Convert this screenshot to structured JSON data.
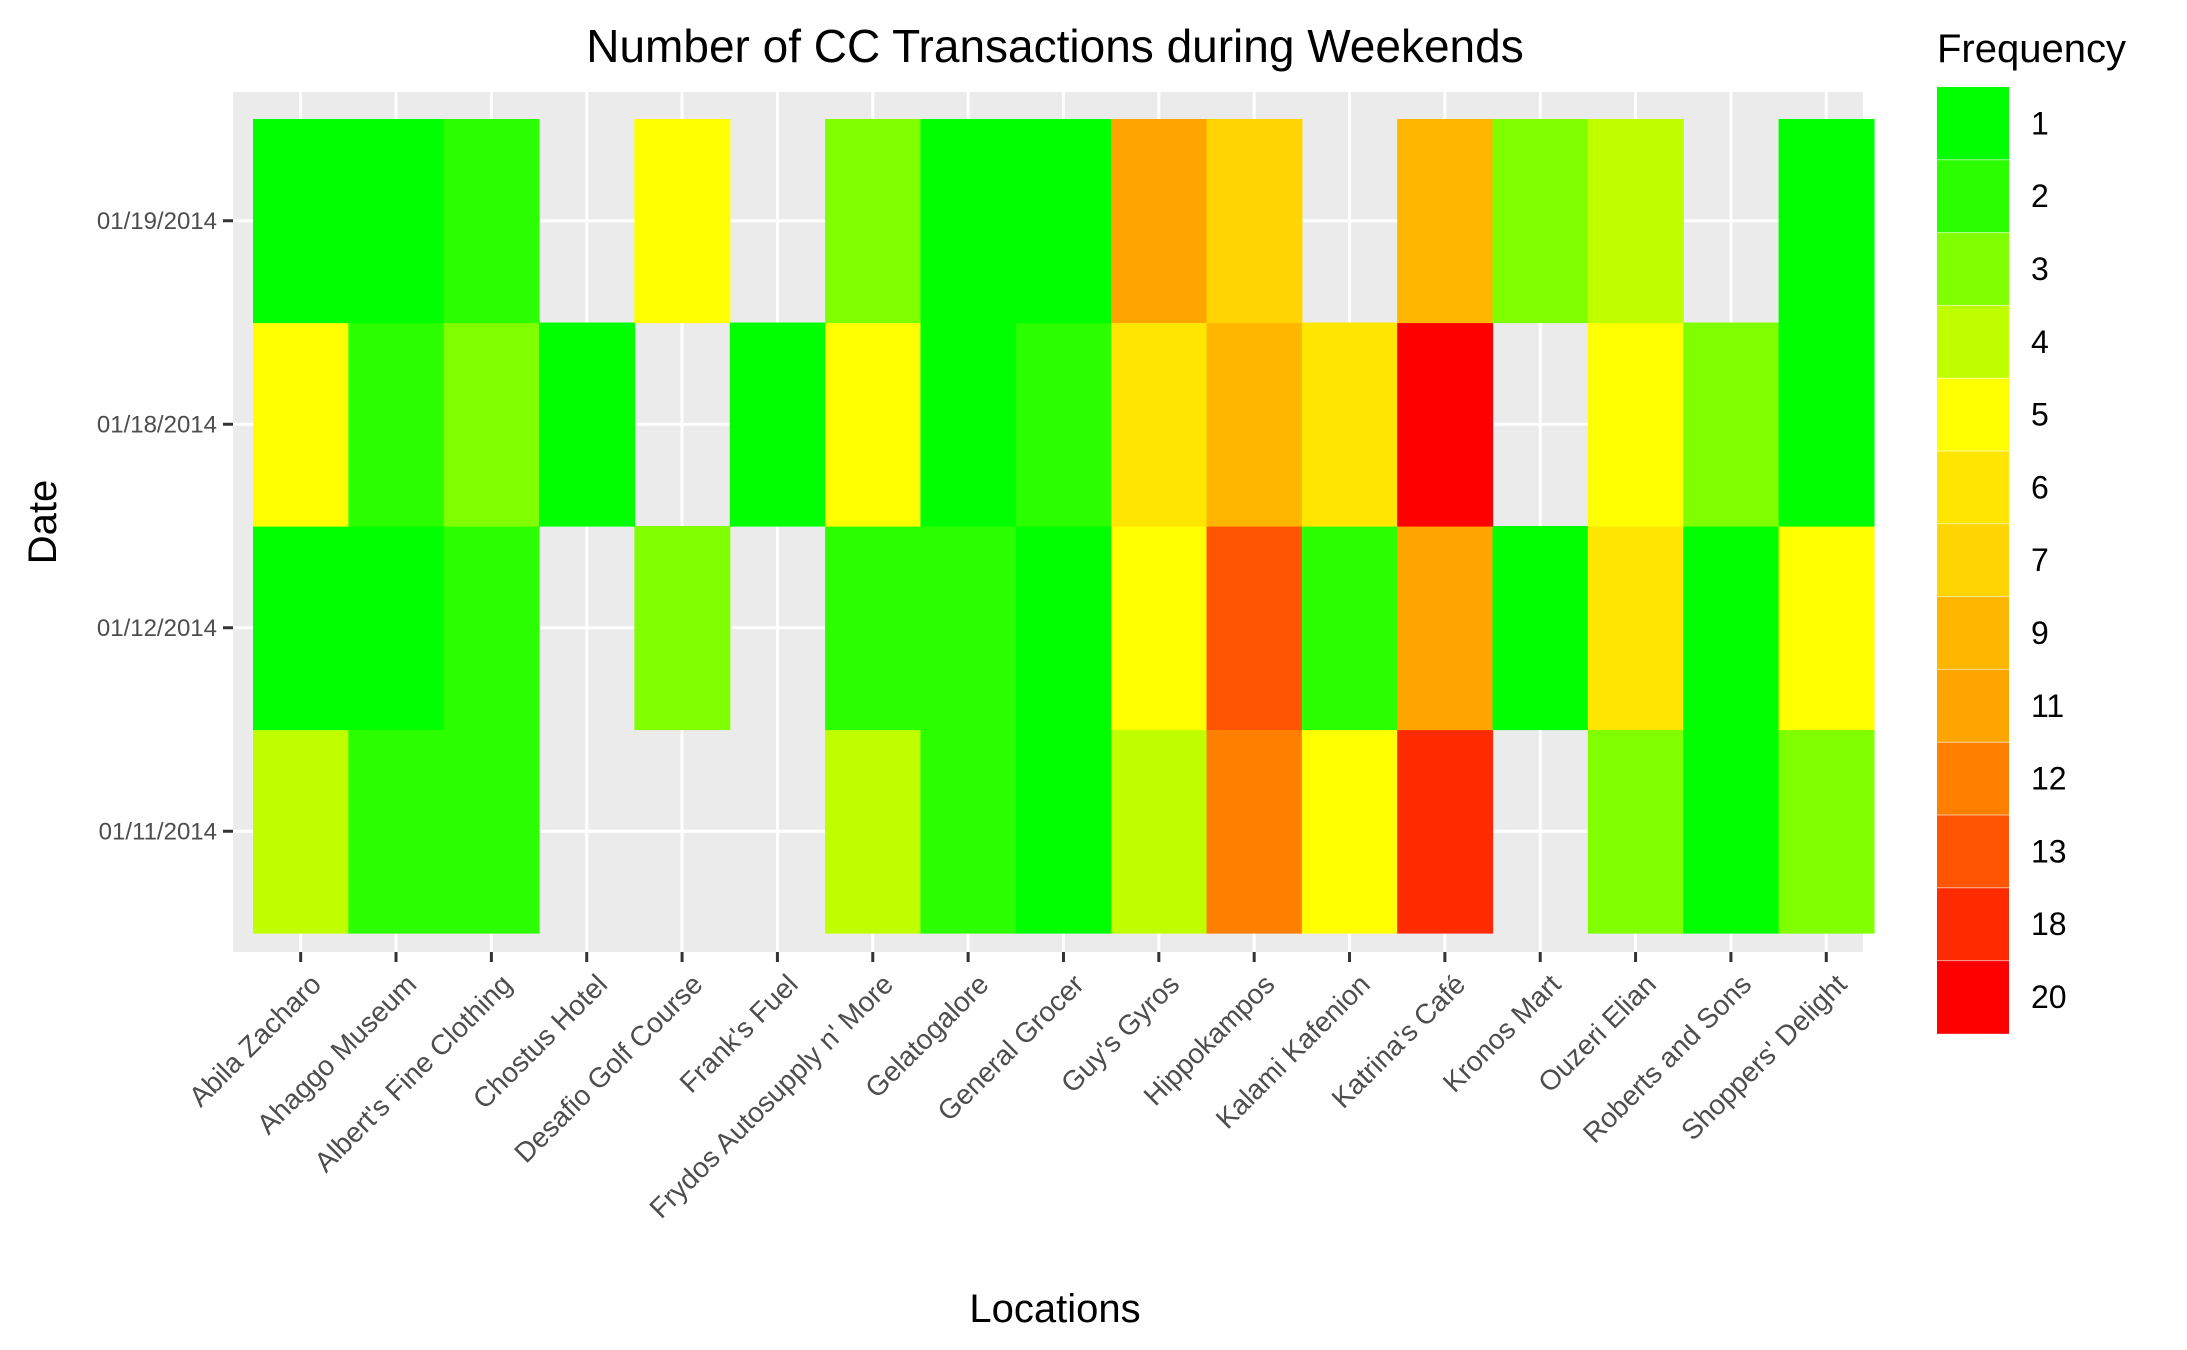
{
  "chart_data": {
    "type": "heatmap",
    "title": "Number of CC Transactions during Weekends",
    "xlabel": "Locations",
    "ylabel": "Date",
    "x_categories": [
      "Abila Zacharo",
      "Ahaggo Museum",
      "Albert's Fine Clothing",
      "Chostus Hotel",
      "Desafio Golf Course",
      "Frank's Fuel",
      "Frydos Autosupply n' More",
      "Gelatogalore",
      "General Grocer",
      "Guy's Gyros",
      "Hippokampos",
      "Kalami Kafenion",
      "Katrina's Café",
      "Kronos Mart",
      "Ouzeri Elian",
      "Roberts and Sons",
      "Shoppers' Delight"
    ],
    "y_categories": [
      "01/11/2014",
      "01/12/2014",
      "01/18/2014",
      "01/19/2014"
    ],
    "values": [
      [
        4,
        2,
        2,
        null,
        null,
        null,
        4,
        2,
        1,
        4,
        12,
        5,
        18,
        null,
        3,
        1,
        3
      ],
      [
        1,
        1,
        2,
        null,
        3,
        null,
        2,
        2,
        1,
        5,
        13,
        2,
        11,
        1,
        6,
        1,
        5
      ],
      [
        5,
        2,
        3,
        1,
        null,
        1,
        5,
        1,
        2,
        6,
        9,
        6,
        20,
        null,
        5,
        3,
        1
      ],
      [
        1,
        1,
        2,
        null,
        5,
        null,
        3,
        1,
        1,
        11,
        7,
        null,
        9,
        3,
        4,
        null,
        1
      ]
    ],
    "grid": true,
    "legend": {
      "title": "Frequency",
      "position": "right",
      "levels": [
        1,
        2,
        3,
        4,
        5,
        6,
        7,
        9,
        11,
        12,
        13,
        18,
        20
      ],
      "colors": [
        "#00ff00",
        "#2bff00",
        "#80ff00",
        "#bfff00",
        "#ffff00",
        "#ffe600",
        "#ffd400",
        "#ffb600",
        "#ffa500",
        "#ff8000",
        "#ff5500",
        "#ff2b00",
        "#ff0000"
      ]
    },
    "panel_background": "#ebebeb",
    "grid_color": "#ffffff"
  }
}
